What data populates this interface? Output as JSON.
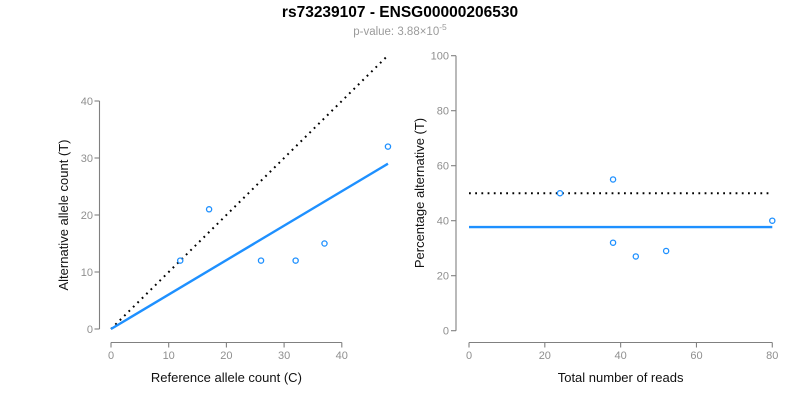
{
  "header": {
    "title": "rs73239107 - ENSG00000206530",
    "pvalue_prefix": "p-value: 3.88×10",
    "pvalue_exponent": "-5"
  },
  "colors": {
    "accent_blue": "#1E90FF",
    "line_black": "#000000",
    "axis_gray": "#808080",
    "tick_label_gray": "#8f8f8f",
    "axis_label_color": "#111111",
    "subtitle_gray": "#9b9b9b",
    "background": "#ffffff"
  },
  "chart_data": [
    {
      "type": "scatter",
      "name": "allele-counts-scatter",
      "xlabel": "Reference allele count (C)",
      "ylabel": "Alternative allele count (T)",
      "xticks": [
        0,
        10,
        20,
        30,
        40
      ],
      "yticks": [
        0,
        10,
        20,
        30,
        40
      ],
      "xlim": [
        0,
        48
      ],
      "ylim": [
        0,
        48
      ],
      "grid": false,
      "legend": "none",
      "points": [
        [
          12,
          12
        ],
        [
          17,
          21
        ],
        [
          26,
          12
        ],
        [
          32,
          12
        ],
        [
          37,
          15
        ],
        [
          48,
          32
        ]
      ],
      "lines": [
        {
          "name": "identity-line",
          "style": "dotted",
          "color": "#000000",
          "from": [
            0,
            0
          ],
          "to": [
            48,
            48
          ]
        },
        {
          "name": "fit-line",
          "style": "solid",
          "color": "#1E90FF",
          "from": [
            0,
            0
          ],
          "to": [
            48,
            29
          ]
        }
      ]
    },
    {
      "type": "scatter",
      "name": "percentage-vs-reads-scatter",
      "xlabel": "Total number of reads",
      "ylabel": "Percentage alternative (T)",
      "xticks": [
        0,
        20,
        40,
        60,
        80
      ],
      "yticks": [
        0,
        20,
        40,
        60,
        80,
        100
      ],
      "xlim": [
        0,
        80
      ],
      "ylim": [
        0,
        100
      ],
      "grid": false,
      "legend": "none",
      "points": [
        [
          24,
          50
        ],
        [
          38,
          55
        ],
        [
          38,
          32
        ],
        [
          44,
          27
        ],
        [
          52,
          29
        ],
        [
          80,
          40
        ]
      ],
      "lines": [
        {
          "name": "fifty-percent-line",
          "style": "dotted",
          "color": "#000000",
          "from": [
            0,
            50
          ],
          "to": [
            80,
            50
          ]
        },
        {
          "name": "mean-percentage-line",
          "style": "solid",
          "color": "#1E90FF",
          "from": [
            0,
            37.7
          ],
          "to": [
            80,
            37.7
          ]
        }
      ]
    }
  ]
}
